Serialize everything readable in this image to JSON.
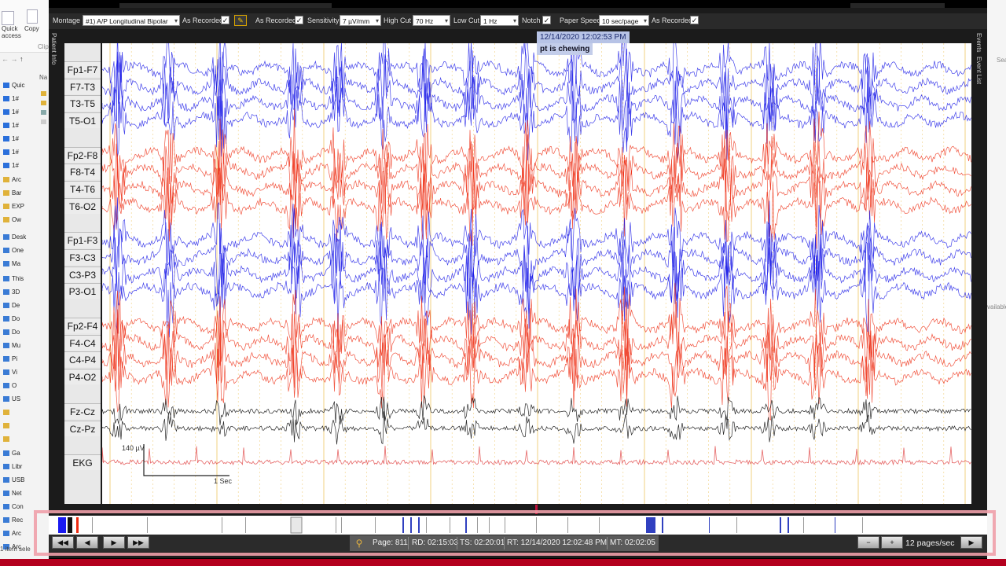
{
  "explorer": {
    "ribbon": [
      "Quick\naccess",
      "Copy",
      "Clip"
    ],
    "nav_label": "Na",
    "tree_items": [
      {
        "label": "Quic",
        "color": "#2a6fdb"
      },
      {
        "label": "1#",
        "color": "#2a6fdb"
      },
      {
        "label": "1#",
        "color": "#2a6fdb"
      },
      {
        "label": "1#",
        "color": "#2a6fdb"
      },
      {
        "label": "1#",
        "color": "#2a6fdb"
      },
      {
        "label": "1#",
        "color": "#2a6fdb"
      },
      {
        "label": "1#",
        "color": "#2a6fdb"
      },
      {
        "label": "Arc",
        "color": "#e0b23a"
      },
      {
        "label": "Bar",
        "color": "#e0b23a"
      },
      {
        "label": "EXP",
        "color": "#e0b23a"
      },
      {
        "label": "Ow",
        "color": "#e0b23a"
      },
      {
        "label": "Desk",
        "color": "#3a7bd5"
      },
      {
        "label": "One",
        "color": "#3a7bd5"
      },
      {
        "label": "Ma",
        "color": "#3a7bd5"
      },
      {
        "label": "This",
        "color": "#3a7bd5"
      },
      {
        "label": "3D",
        "color": "#3a7bd5"
      },
      {
        "label": "De",
        "color": "#3a7bd5"
      },
      {
        "label": "Do",
        "color": "#3a7bd5"
      },
      {
        "label": "Do",
        "color": "#3a7bd5"
      },
      {
        "label": "Mu",
        "color": "#3a7bd5"
      },
      {
        "label": "Pi",
        "color": "#3a7bd5"
      },
      {
        "label": "Vi",
        "color": "#3a7bd5"
      },
      {
        "label": "O",
        "color": "#3a7bd5"
      },
      {
        "label": "US",
        "color": "#3a7bd5"
      },
      {
        "label": "",
        "color": "#e0b23a"
      },
      {
        "label": "",
        "color": "#e0b23a"
      },
      {
        "label": "",
        "color": "#e0b23a"
      },
      {
        "label": "Ga",
        "color": "#3a7bd5"
      },
      {
        "label": "Libr",
        "color": "#3a7bd5"
      },
      {
        "label": "USB",
        "color": "#3a7bd5"
      },
      {
        "label": "Net",
        "color": "#3a7bd5"
      },
      {
        "label": "Con",
        "color": "#3a7bd5"
      },
      {
        "label": "Rec",
        "color": "#3a7bd5"
      },
      {
        "label": "Arc",
        "color": "#3a7bd5"
      },
      {
        "label": "Arc",
        "color": "#3a7bd5"
      }
    ],
    "status": "1 item sele"
  },
  "right_bg": {
    "texts": [
      "Sea",
      "vailable"
    ]
  },
  "toolbar": {
    "montage_label": "Montage",
    "montage_value": "#1) A/P Longitudinal Bipolar",
    "as_recorded_1": "As Recorded",
    "as_recorded_2": "As Recorded",
    "sensitivity_label": "Sensitivity",
    "sensitivity_value": "7 µV/mm",
    "high_cut_label": "High Cut",
    "high_cut_value": "70 Hz",
    "low_cut_label": "Low Cut",
    "low_cut_value": "1 Hz",
    "notch_label": "Notch",
    "paper_speed_label": "Paper Speed",
    "paper_speed_value": "10 sec/page",
    "as_recorded_3": "As Recorded",
    "check_mark": "✓",
    "edit_glyph": "✎"
  },
  "side_tabs": {
    "left": "Patient Info",
    "right_1": "Events",
    "right_2": "Event List"
  },
  "channels": [
    {
      "label": "Fp1-F7",
      "group": "left"
    },
    {
      "label": "F7-T3",
      "group": "left"
    },
    {
      "label": "T3-T5",
      "group": "left"
    },
    {
      "label": "T5-O1",
      "group": "left"
    },
    {
      "label": "Fp2-F8",
      "group": "right"
    },
    {
      "label": "F8-T4",
      "group": "right"
    },
    {
      "label": "T4-T6",
      "group": "right"
    },
    {
      "label": "T6-O2",
      "group": "right"
    },
    {
      "label": "Fp1-F3",
      "group": "left"
    },
    {
      "label": "F3-C3",
      "group": "left"
    },
    {
      "label": "C3-P3",
      "group": "left"
    },
    {
      "label": "P3-O1",
      "group": "left"
    },
    {
      "label": "Fp2-F4",
      "group": "right"
    },
    {
      "label": "F4-C4",
      "group": "right"
    },
    {
      "label": "C4-P4",
      "group": "right"
    },
    {
      "label": "P4-O2",
      "group": "right"
    },
    {
      "label": "Fz-Cz",
      "group": "mid"
    },
    {
      "label": "Cz-Pz",
      "group": "mid"
    },
    {
      "label": "EKG",
      "group": "ekg"
    }
  ],
  "colors": {
    "left": "#1414e6",
    "right": "#ee2a10",
    "mid": "#111111",
    "ekg": "#e04040",
    "grid": "#f0d080"
  },
  "event": {
    "timestamp": "12/14/2020 12:02:53 PM",
    "text": "pt is chewing"
  },
  "calibration": {
    "amplitude": "140 µV",
    "time": "1 Sec"
  },
  "navigation": {
    "first_icon": "skip-back-icon",
    "prev_icon": "step-back-icon",
    "next_icon": "play-icon",
    "last_icon": "fast-forward-icon",
    "glyph_first": "◀◀",
    "glyph_prev": "◀",
    "glyph_next": "▶",
    "glyph_last": "▶▶"
  },
  "status": {
    "page": "Page: 811",
    "rd": "RD: 02:15:03",
    "ts": "TS: 02:20:01",
    "rt": "RT: 12/14/2020 12:02:48 PM",
    "mt": "MT: 02:02:05"
  },
  "playback": {
    "minus": "−",
    "plus": "+",
    "speed": "12 pages/sec",
    "play": "▶"
  }
}
